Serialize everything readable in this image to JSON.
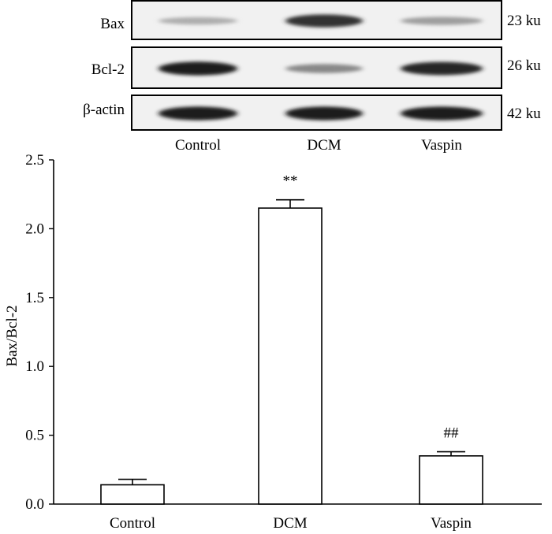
{
  "western_blot": {
    "rows": [
      {
        "protein": "Bax",
        "mw": "23 ku",
        "intensities": [
          0.28,
          0.85,
          0.35
        ]
      },
      {
        "protein": "Bcl-2",
        "mw": "26 ku",
        "intensities": [
          0.95,
          0.45,
          0.9
        ]
      },
      {
        "protein": "β-actin",
        "mw": "42 ku",
        "intensities": [
          0.95,
          0.95,
          0.95
        ]
      }
    ],
    "lanes": [
      "Control",
      "DCM",
      "Vaspin"
    ]
  },
  "chart_data": {
    "type": "bar",
    "categories": [
      "Control",
      "DCM",
      "Vaspin"
    ],
    "values": [
      0.14,
      2.15,
      0.35
    ],
    "errors": [
      0.04,
      0.06,
      0.03
    ],
    "annotations": [
      "",
      "**",
      "##"
    ],
    "xlabel": "",
    "ylabel": "Bax/Bcl-2",
    "ylim": [
      0,
      2.5
    ],
    "yticks": [
      "0.0",
      "0.5",
      "1.0",
      "1.5",
      "2.0",
      "2.5"
    ]
  }
}
